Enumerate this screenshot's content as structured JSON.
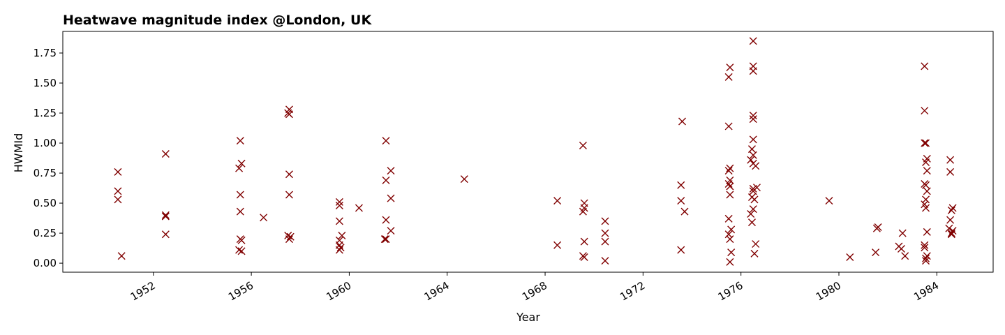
{
  "chart_data": {
    "type": "scatter",
    "title": "Heatwave magnitude index @London, UK",
    "xlabel": "Year",
    "ylabel": "HWMId",
    "x_ticks": [
      "1952",
      "1956",
      "1960",
      "1964",
      "1968",
      "1972",
      "1976",
      "1980",
      "1984"
    ],
    "y_ticks": [
      "0.00",
      "0.25",
      "0.50",
      "0.75",
      "1.00",
      "1.25",
      "1.50",
      "1.75"
    ],
    "xlim": [
      1948.3,
      1986.3
    ],
    "ylim": [
      -0.075,
      1.93
    ],
    "grid": false,
    "marker": "x",
    "color": "#800000",
    "series": [
      {
        "points": [
          [
            1950.55,
            0.76
          ],
          [
            1950.55,
            0.6
          ],
          [
            1950.55,
            0.53
          ],
          [
            1950.7,
            0.06
          ],
          [
            1952.5,
            0.91
          ],
          [
            1952.5,
            0.4
          ],
          [
            1952.5,
            0.39
          ],
          [
            1952.5,
            0.24
          ],
          [
            1955.55,
            1.02
          ],
          [
            1955.5,
            0.79
          ],
          [
            1955.6,
            0.83
          ],
          [
            1955.55,
            0.57
          ],
          [
            1955.55,
            0.43
          ],
          [
            1955.55,
            0.2
          ],
          [
            1955.6,
            0.19
          ],
          [
            1955.5,
            0.11
          ],
          [
            1955.6,
            0.1
          ],
          [
            1956.5,
            0.38
          ],
          [
            1957.55,
            1.28
          ],
          [
            1957.55,
            1.24
          ],
          [
            1957.5,
            1.25
          ],
          [
            1957.55,
            0.74
          ],
          [
            1957.55,
            0.57
          ],
          [
            1957.5,
            0.23
          ],
          [
            1957.6,
            0.22
          ],
          [
            1957.55,
            0.2
          ],
          [
            1959.6,
            0.51
          ],
          [
            1959.6,
            0.48
          ],
          [
            1959.6,
            0.35
          ],
          [
            1959.7,
            0.23
          ],
          [
            1959.6,
            0.19
          ],
          [
            1959.6,
            0.15
          ],
          [
            1959.65,
            0.13
          ],
          [
            1959.6,
            0.11
          ],
          [
            1960.4,
            0.46
          ],
          [
            1961.5,
            1.02
          ],
          [
            1961.7,
            0.77
          ],
          [
            1961.5,
            0.69
          ],
          [
            1961.7,
            0.54
          ],
          [
            1961.5,
            0.36
          ],
          [
            1961.7,
            0.27
          ],
          [
            1961.5,
            0.2
          ],
          [
            1961.45,
            0.2
          ],
          [
            1964.7,
            0.7
          ],
          [
            1968.5,
            0.52
          ],
          [
            1968.5,
            0.15
          ],
          [
            1969.55,
            0.98
          ],
          [
            1969.6,
            0.5
          ],
          [
            1969.55,
            0.43
          ],
          [
            1969.6,
            0.46
          ],
          [
            1969.6,
            0.18
          ],
          [
            1969.55,
            0.06
          ],
          [
            1969.6,
            0.05
          ],
          [
            1970.45,
            0.35
          ],
          [
            1970.45,
            0.25
          ],
          [
            1970.45,
            0.18
          ],
          [
            1970.45,
            0.02
          ],
          [
            1973.6,
            1.18
          ],
          [
            1973.55,
            0.65
          ],
          [
            1973.55,
            0.52
          ],
          [
            1973.7,
            0.43
          ],
          [
            1973.55,
            0.11
          ],
          [
            1975.55,
            1.63
          ],
          [
            1975.5,
            1.55
          ],
          [
            1975.5,
            1.14
          ],
          [
            1975.55,
            0.79
          ],
          [
            1975.5,
            0.77
          ],
          [
            1975.55,
            0.69
          ],
          [
            1975.5,
            0.66
          ],
          [
            1975.55,
            0.64
          ],
          [
            1975.55,
            0.57
          ],
          [
            1975.5,
            0.37
          ],
          [
            1975.6,
            0.28
          ],
          [
            1975.5,
            0.24
          ],
          [
            1975.55,
            0.2
          ],
          [
            1975.6,
            0.09
          ],
          [
            1975.55,
            0.01
          ],
          [
            1976.5,
            1.85
          ],
          [
            1976.5,
            1.64
          ],
          [
            1976.5,
            1.6
          ],
          [
            1976.5,
            1.23
          ],
          [
            1976.5,
            1.2
          ],
          [
            1976.5,
            1.03
          ],
          [
            1976.45,
            0.95
          ],
          [
            1976.5,
            0.9
          ],
          [
            1976.4,
            0.86
          ],
          [
            1976.5,
            0.83
          ],
          [
            1976.6,
            0.81
          ],
          [
            1976.5,
            0.62
          ],
          [
            1976.65,
            0.63
          ],
          [
            1976.5,
            0.6
          ],
          [
            1976.45,
            0.55
          ],
          [
            1976.55,
            0.53
          ],
          [
            1976.5,
            0.45
          ],
          [
            1976.4,
            0.41
          ],
          [
            1976.45,
            0.34
          ],
          [
            1976.6,
            0.16
          ],
          [
            1976.55,
            0.08
          ],
          [
            1979.6,
            0.52
          ],
          [
            1980.45,
            0.05
          ],
          [
            1981.55,
            0.29
          ],
          [
            1981.6,
            0.3
          ],
          [
            1981.5,
            0.09
          ],
          [
            1982.45,
            0.14
          ],
          [
            1982.55,
            0.12
          ],
          [
            1982.6,
            0.25
          ],
          [
            1982.7,
            0.06
          ],
          [
            1983.5,
            1.64
          ],
          [
            1983.5,
            1.27
          ],
          [
            1983.5,
            1.0
          ],
          [
            1983.55,
            1.0
          ],
          [
            1983.6,
            0.87
          ],
          [
            1983.55,
            0.84
          ],
          [
            1983.6,
            0.77
          ],
          [
            1983.5,
            0.66
          ],
          [
            1983.55,
            0.65
          ],
          [
            1983.6,
            0.6
          ],
          [
            1983.55,
            0.53
          ],
          [
            1983.5,
            0.49
          ],
          [
            1983.55,
            0.46
          ],
          [
            1983.6,
            0.26
          ],
          [
            1983.5,
            0.15
          ],
          [
            1983.5,
            0.13
          ],
          [
            1983.6,
            0.06
          ],
          [
            1983.55,
            0.04
          ],
          [
            1983.55,
            0.02
          ],
          [
            1984.55,
            0.86
          ],
          [
            1984.55,
            0.76
          ],
          [
            1984.65,
            0.46
          ],
          [
            1984.6,
            0.44
          ],
          [
            1984.55,
            0.36
          ],
          [
            1984.5,
            0.29
          ],
          [
            1984.65,
            0.27
          ],
          [
            1984.6,
            0.25
          ],
          [
            1984.6,
            0.24
          ]
        ]
      }
    ]
  }
}
